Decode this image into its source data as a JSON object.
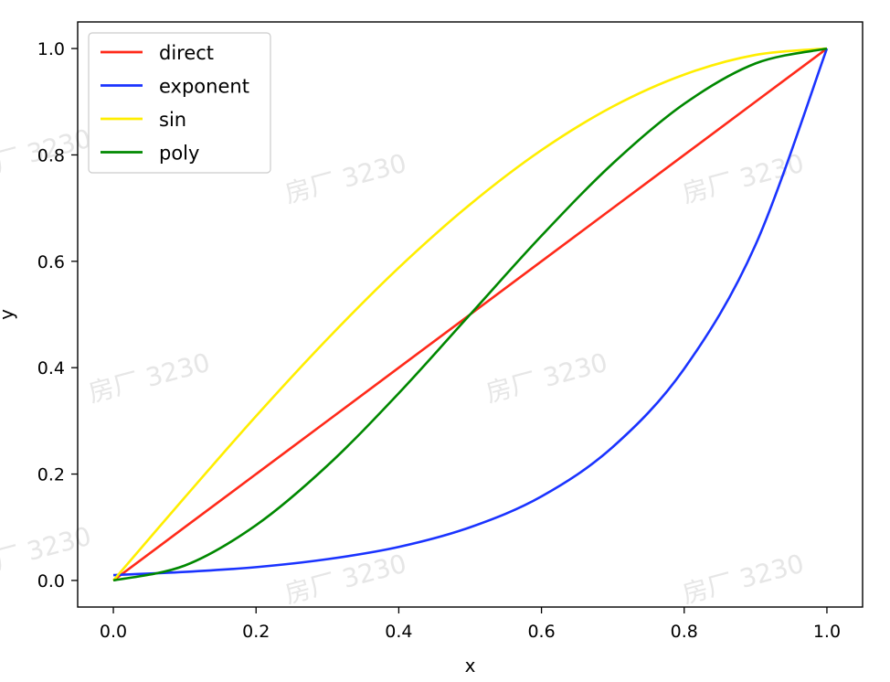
{
  "watermark_text": "房厂 3230",
  "chart_data": {
    "type": "line",
    "title": "",
    "xlabel": "x",
    "ylabel": "y",
    "xlim": [
      -0.05,
      1.05
    ],
    "ylim": [
      -0.05,
      1.05
    ],
    "xticks": [
      0.0,
      0.2,
      0.4,
      0.6,
      0.8,
      1.0
    ],
    "xtick_labels": [
      "0.0",
      "0.2",
      "0.4",
      "0.6",
      "0.8",
      "1.0"
    ],
    "yticks": [
      0.0,
      0.2,
      0.4,
      0.6,
      0.8,
      1.0
    ],
    "ytick_labels": [
      "0.0",
      "0.2",
      "0.4",
      "0.6",
      "0.8",
      "1.0"
    ],
    "grid": false,
    "legend": "upper-left",
    "x": [
      0.0,
      0.1,
      0.2,
      0.3,
      0.4,
      0.5,
      0.6,
      0.7,
      0.8,
      0.9,
      1.0
    ],
    "series": [
      {
        "name": "direct",
        "color": "#ff2a1a",
        "values": [
          0.0,
          0.1,
          0.2,
          0.3,
          0.4,
          0.5,
          0.6,
          0.7,
          0.8,
          0.9,
          1.0
        ]
      },
      {
        "name": "exponent",
        "color": "#1a33ff",
        "values": [
          0.01,
          0.016,
          0.025,
          0.04,
          0.063,
          0.1,
          0.158,
          0.251,
          0.398,
          0.631,
          1.0
        ]
      },
      {
        "name": "sin",
        "color": "#ffee00",
        "values": [
          0.0,
          0.156,
          0.309,
          0.454,
          0.588,
          0.707,
          0.809,
          0.891,
          0.951,
          0.988,
          1.0
        ]
      },
      {
        "name": "poly",
        "color": "#008800",
        "values": [
          0.0,
          0.028,
          0.104,
          0.216,
          0.352,
          0.5,
          0.648,
          0.784,
          0.896,
          0.972,
          1.0
        ]
      }
    ]
  }
}
